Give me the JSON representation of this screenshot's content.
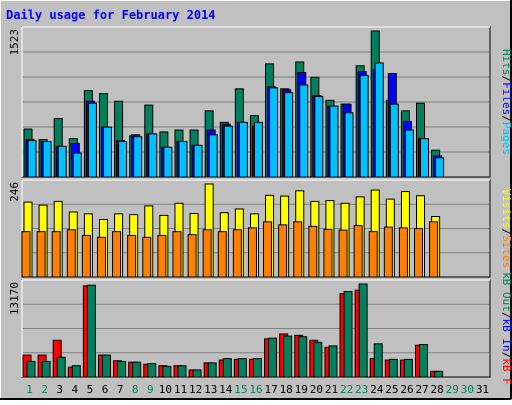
{
  "chart_data": {
    "type": "bar",
    "title": "Daily usage for February 2014",
    "categories": [
      "1",
      "2",
      "3",
      "4",
      "5",
      "6",
      "7",
      "8",
      "9",
      "10",
      "11",
      "12",
      "13",
      "14",
      "15",
      "16",
      "17",
      "18",
      "19",
      "20",
      "21",
      "22",
      "23",
      "24",
      "25",
      "26",
      "27",
      "28",
      "29",
      "30",
      "31"
    ],
    "weekend_days": [
      "1",
      "2",
      "8",
      "9",
      "15",
      "16",
      "22",
      "23",
      "29",
      "30"
    ],
    "colors": {
      "background": "#c0c0c0",
      "title": "#0000ff",
      "hits": "#00805c",
      "files": "#0000ff",
      "pages": "#00c0ff",
      "visits": "#ffff00",
      "sites": "#ff8000",
      "kb_in": "#0000ff",
      "kb_out": "#00805c",
      "kb_f": "#ff0000",
      "weekday_label": "#000000",
      "weekend_label": "#00805c"
    },
    "panels": [
      {
        "id": "hits-files-pages",
        "ymax_label": "1523",
        "ymax": 1523,
        "legend": [
          {
            "text": "Pages",
            "color": "#00c0ff"
          },
          {
            "text": "/",
            "color": "#000000"
          },
          {
            "text": "Files",
            "color": "#0000ff"
          },
          {
            "text": "/",
            "color": "#000000"
          },
          {
            "text": "Hits",
            "color": "#00805c"
          }
        ],
        "series": [
          {
            "name": "Hits",
            "color": "#00805c",
            "values": [
              500,
              390,
              610,
              400,
              900,
              870,
              790,
              430,
              750,
              470,
              490,
              490,
              690,
              570,
              920,
              640,
              1180,
              920,
              1200,
              1040,
              800,
              760,
              1160,
              1523,
              800,
              690,
              770,
              280,
              0,
              0,
              0
            ]
          },
          {
            "name": "Files",
            "color": "#0000ff",
            "values": [
              390,
              370,
              320,
              350,
              790,
              520,
              380,
              440,
              450,
              310,
              370,
              330,
              490,
              550,
              570,
              530,
              940,
              910,
              1090,
              850,
              740,
              760,
              1100,
              1120,
              1080,
              580,
              400,
              220,
              0,
              0,
              0
            ]
          },
          {
            "name": "Pages",
            "color": "#00c0ff",
            "values": [
              380,
              370,
              320,
              250,
              770,
              520,
              370,
              420,
              450,
              310,
              370,
              330,
              440,
              530,
              570,
              570,
              930,
              880,
              960,
              840,
              740,
              670,
              1060,
              1190,
              760,
              490,
              400,
              200,
              0,
              0,
              0
            ]
          }
        ]
      },
      {
        "id": "visits-sites",
        "ymax_label": "246",
        "ymax": 246,
        "legend": [
          {
            "text": "Sites",
            "color": "#ff8000"
          },
          {
            "text": "/",
            "color": "#000000"
          },
          {
            "text": "Visits",
            "color": "#ffff00"
          }
        ],
        "series": [
          {
            "name": "Visits",
            "color": "#ffff00",
            "values": [
              198,
              190,
              200,
              172,
              167,
              152,
              167,
              165,
              188,
              163,
              195,
              168,
              246,
              170,
              180,
              167,
              216,
              214,
              228,
              200,
              202,
              195,
              212,
              230,
              206,
              226,
              215,
              160,
              0,
              0,
              0
            ]
          },
          {
            "name": "Sites",
            "color": "#ff8000",
            "values": [
              120,
              120,
              120,
              125,
              110,
              105,
              120,
              110,
              105,
              110,
              120,
              112,
              125,
              120,
              125,
              130,
              146,
              138,
              146,
              134,
              126,
              124,
              136,
              120,
              132,
              130,
              128,
              146,
              0,
              0,
              0
            ]
          }
        ]
      },
      {
        "id": "kb",
        "ymax_label": "13170",
        "ymax": 13170,
        "legend": [
          {
            "text": "kB F",
            "color": "#ff0000"
          },
          {
            "text": "/",
            "color": "#000000"
          },
          {
            "text": "kB In",
            "color": "#0000ff"
          },
          {
            "text": "/",
            "color": "#000000"
          },
          {
            "text": "kB Out",
            "color": "#00805c"
          }
        ],
        "series": [
          {
            "name": "kB F",
            "color": "#ff0000",
            "values": [
              3100,
              3100,
              5200,
              1400,
              12900,
              3100,
              2300,
              2100,
              1800,
              1600,
              1600,
              1000,
              2000,
              2400,
              2500,
              2500,
              5400,
              6100,
              5900,
              5200,
              4200,
              11800,
              12300,
              2600,
              2400,
              2400,
              4500,
              800,
              0,
              0,
              0
            ]
          },
          {
            "name": "kB Out",
            "color": "#00805c",
            "values": [
              2200,
              2200,
              2800,
              1600,
              13000,
              3100,
              2200,
              2100,
              1900,
              1500,
              1600,
              1000,
              2000,
              2600,
              2600,
              2600,
              5500,
              5800,
              5700,
              4900,
              4400,
              12100,
              13170,
              4700,
              2500,
              2500,
              4600,
              800,
              0,
              0,
              0
            ]
          }
        ]
      }
    ]
  }
}
